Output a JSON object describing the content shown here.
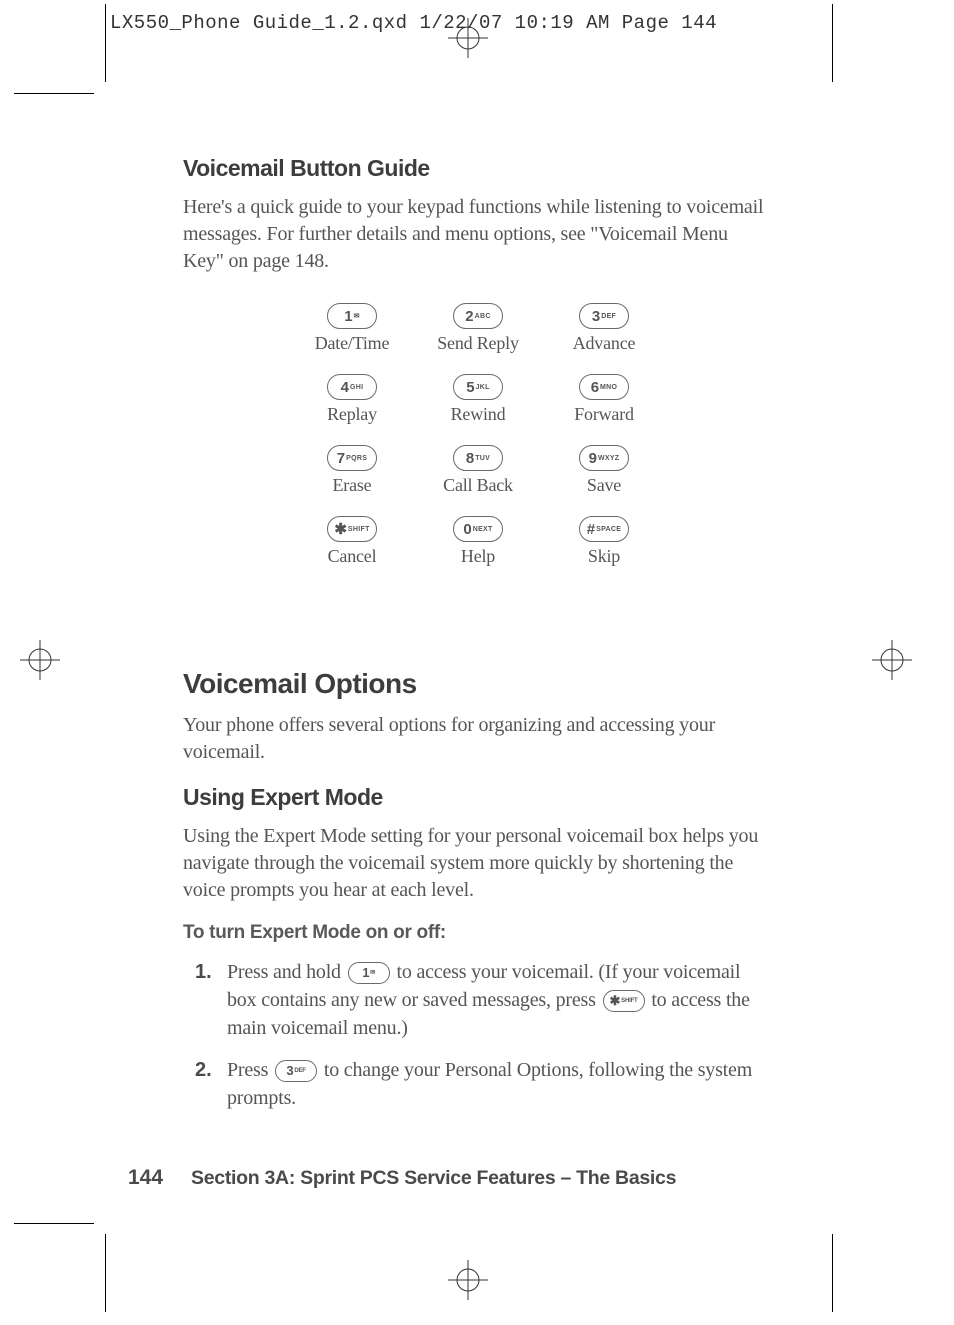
{
  "header": {
    "slug": "LX550_Phone Guide_1.2.qxd  1/22/07  10:19 AM  Page 144"
  },
  "sections": {
    "h3a": "Voicemail Button Guide",
    "p1": "Here's a quick guide to your keypad functions while listening to voicemail messages. For further details and menu options, see \"Voicemail Menu Key\" on page 148.",
    "h2": "Voicemail Options",
    "p2": "Your phone offers several options for organizing and accessing your voicemail.",
    "h3b": "Using Expert Mode",
    "p3": "Using the Expert Mode setting for your personal voicemail box helps you navigate through the voicemail system more quickly by shortening the voice prompts you hear at each level.",
    "bold": "To turn Expert Mode on or off:",
    "step1_a": "Press and hold ",
    "step1_b": " to access your voicemail. (If your voicemail box contains any new or saved messages, press ",
    "step1_c": " to access the main voicemail menu.)",
    "step2_a": "Press ",
    "step2_b": " to change your Personal Options, following the system prompts."
  },
  "keypad": {
    "keys": [
      {
        "main": "1",
        "sub": "✉",
        "label": "Date/Time"
      },
      {
        "main": "2",
        "sub": "ABC",
        "label": "Send Reply"
      },
      {
        "main": "3",
        "sub": "DEF",
        "label": "Advance"
      },
      {
        "main": "4",
        "sub": "GHI",
        "label": "Replay"
      },
      {
        "main": "5",
        "sub": "JKL",
        "label": "Rewind"
      },
      {
        "main": "6",
        "sub": "MNO",
        "label": "Forward"
      },
      {
        "main": "7",
        "sub": "PQRS",
        "label": "Erase"
      },
      {
        "main": "8",
        "sub": "TUV",
        "label": "Call Back"
      },
      {
        "main": "9",
        "sub": "WXYZ",
        "label": "Save"
      },
      {
        "main": "✱",
        "sub": "SHIFT",
        "label": "Cancel"
      },
      {
        "main": "0",
        "sub": "NEXT",
        "label": "Help"
      },
      {
        "main": "#",
        "sub": "SPACE",
        "label": "Skip"
      }
    ],
    "inline": {
      "key1": {
        "main": "1",
        "sub": "✉"
      },
      "keyStar": {
        "main": "✱",
        "sub": "SHIFT"
      },
      "key3": {
        "main": "3",
        "sub": "DEF"
      }
    }
  },
  "footer": {
    "page": "144",
    "text": "Section 3A: Sprint PCS Service Features – The Basics"
  },
  "style": {
    "text_color": "#555555",
    "heading_color": "#3d3d3d",
    "key_border": "#6a6a6a",
    "font_body": "Georgia serif",
    "font_heading": "Arial sans-serif"
  }
}
